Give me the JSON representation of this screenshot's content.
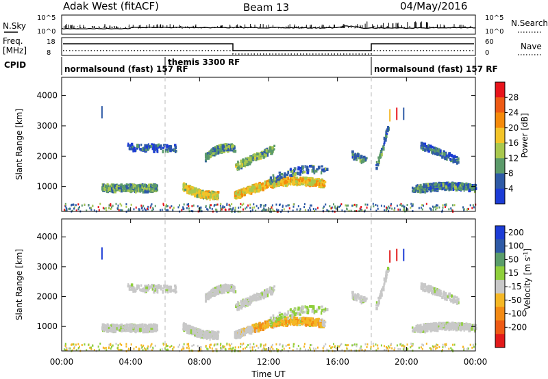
{
  "header": {
    "radar": "Adak West (fitACF)",
    "beam": "Beam 13",
    "date": "04/May/2016"
  },
  "nsky_panel": {
    "left_label": "N.Sky",
    "right_label": "N.Search",
    "left_ticks": [
      "10^5",
      "10^0"
    ],
    "right_ticks": [
      "10^5",
      "10^0"
    ]
  },
  "freq_panel": {
    "left_label_1": "Freq.",
    "left_label_2": "[MHz]",
    "left_ticks": [
      "18",
      "8"
    ],
    "right_ticks": [
      "60",
      "0"
    ],
    "right_label": "Nave"
  },
  "cpid_panel": {
    "label": "CPID",
    "segments": [
      {
        "name": "normalsound (fast) 157 RF",
        "start_h": 0,
        "end_h": 6
      },
      {
        "name": "themis 3300 RF",
        "start_h": 6,
        "end_h": 18
      },
      {
        "name": "normalsound (fast) 157 RF",
        "start_h": 18,
        "end_h": 24
      }
    ]
  },
  "power_panel": {
    "ylabel": "Slant Range [km]",
    "colorbar_label": "Power [dB]",
    "colorbar_ticks": [
      "28",
      "24",
      "20",
      "16",
      "12",
      "8",
      "4"
    ],
    "colorbar_colors": [
      "#e8141b",
      "#ee5a14",
      "#f58a0a",
      "#f3c428",
      "#a9c84e",
      "#5b9a6a",
      "#2e5aa6",
      "#1c3cd6"
    ]
  },
  "velocity_panel": {
    "ylabel": "Slant Range [km]",
    "colorbar_label": "Velocity [m s^-1]",
    "colorbar_ticks": [
      "200",
      "100",
      "50",
      "15",
      "-15",
      "-50",
      "-100",
      "-200"
    ],
    "colorbar_colors": [
      "#1c3cd6",
      "#2e5aa6",
      "#5a9d6a",
      "#8fcf3c",
      "#c8c8c8",
      "#f5b724",
      "#f38a14",
      "#ee5a14",
      "#e21a1a"
    ]
  },
  "xaxis": {
    "label": "Time UT",
    "ticks": [
      "00:00",
      "04:00",
      "08:00",
      "12:00",
      "16:00",
      "20:00",
      "00:00"
    ]
  },
  "chart_data": {
    "type": "heatmap",
    "title": "Adak West (fitACF) Beam 13 04/May/2016",
    "xlabel": "Time UT",
    "ylabel": "Slant Range [km]",
    "x_range_hours": [
      0,
      24
    ],
    "ylim_km": [
      180,
      4600
    ],
    "y_ticks_km": [
      1000,
      2000,
      3000,
      4000
    ],
    "power_db": {
      "colorbar_range": [
        0,
        32
      ],
      "features": [
        {
          "name": "near-range band",
          "t_start": 2.3,
          "t_end": 5.5,
          "range_km": 1000,
          "power_db": 10
        },
        {
          "name": "far-range band",
          "t_start": 3.8,
          "t_end": 6.5,
          "range_km": 2350,
          "power_db": 6
        },
        {
          "name": "morning arc",
          "t_start": 7.0,
          "t_end": 8.9,
          "range_km": 850,
          "power_db": 16
        },
        {
          "name": "mid-range arc",
          "t_start": 8.3,
          "t_end": 10.0,
          "range_km": 2150,
          "power_db": 10
        },
        {
          "name": "midday band",
          "t_start": 10.0,
          "t_end": 15.2,
          "range_km": 950,
          "power_db": 18
        },
        {
          "name": "noon arc",
          "t_start": 10.0,
          "t_end": 12.3,
          "range_km": 1750,
          "power_db": 12
        },
        {
          "name": "evening band",
          "t_start": 20.3,
          "t_end": 24.0,
          "range_km": 1000,
          "power_db": 8
        },
        {
          "name": "evening far band",
          "t_start": 21.0,
          "t_end": 23.0,
          "range_km": 2200,
          "power_db": 6
        }
      ]
    },
    "velocity_ms": {
      "colorbar_range": [
        -200,
        200
      ],
      "features": [
        {
          "name": "midday flow",
          "t_start": 11.0,
          "t_end": 15.0,
          "range_km": 1100,
          "velocity": -60
        },
        {
          "name": "quiet echoes",
          "t_start": 2.3,
          "t_end": 24.0,
          "range_km": 1000,
          "velocity": 0
        }
      ]
    }
  }
}
